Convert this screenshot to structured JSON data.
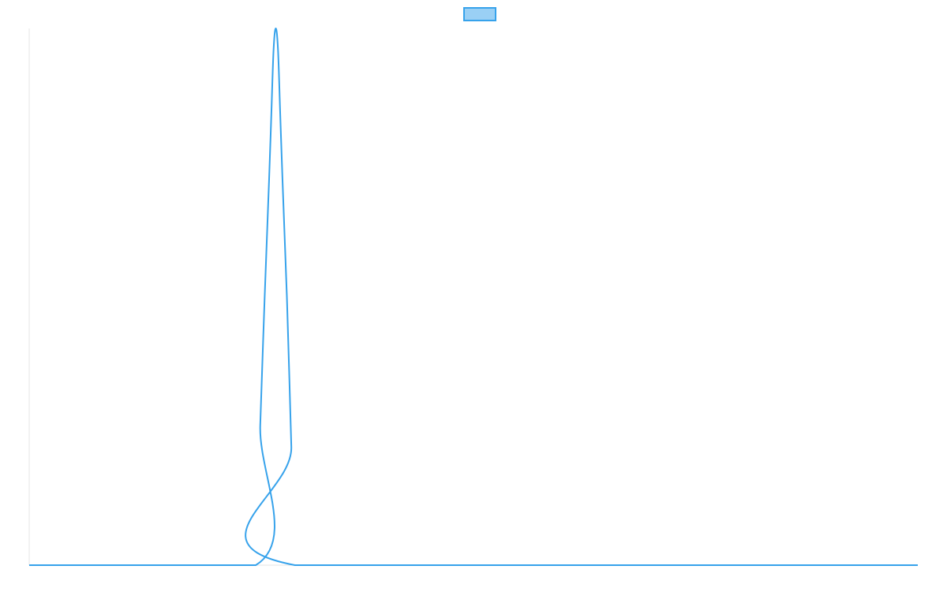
{
  "chart_data": {
    "type": "line",
    "title": "",
    "xlabel": "",
    "ylabel": "",
    "grid": false,
    "legend": {
      "placement": "top-center",
      "entries": [
        {
          "label": "",
          "color": "#36a2eb",
          "fill": "#9ad0f5"
        }
      ]
    },
    "xlim": [
      0,
      100
    ],
    "ylim": [
      0,
      1
    ],
    "series": [
      {
        "color": "#36a2eb",
        "points": [
          [
            0,
            0
          ],
          [
            25.5,
            0
          ],
          [
            26,
            0.26
          ],
          [
            26.5,
            0.5
          ],
          [
            27,
            0.72
          ],
          [
            27.25,
            0.84
          ],
          [
            27.5,
            0.96
          ],
          [
            27.75,
            1.0
          ],
          [
            28,
            0.96
          ],
          [
            28.25,
            0.84
          ],
          [
            28.5,
            0.72
          ],
          [
            29,
            0.5
          ],
          [
            29.5,
            0.22
          ],
          [
            29.9,
            0
          ],
          [
            100,
            0
          ]
        ]
      }
    ]
  }
}
